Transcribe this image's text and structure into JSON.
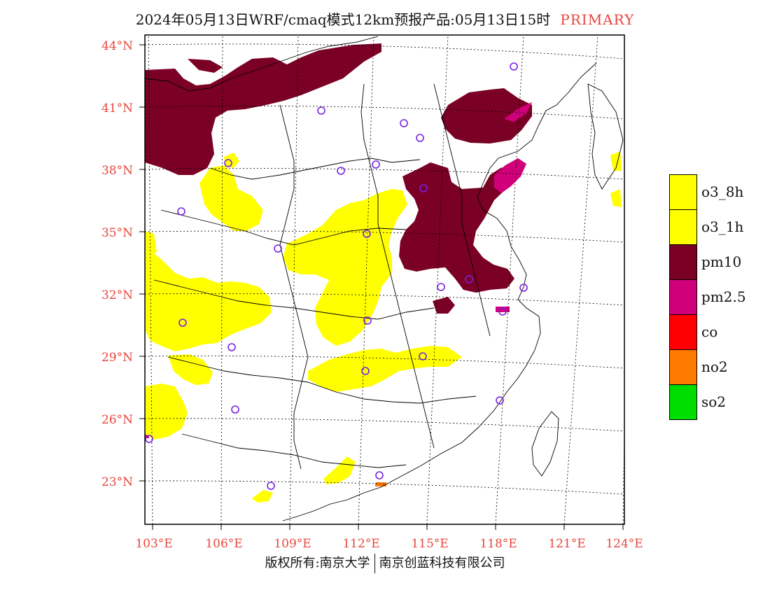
{
  "title": {
    "main": "2024年05月13日WRF/cmaq模式12km预报产品:05月13日15时",
    "tag": "PRIMARY"
  },
  "axes": {
    "lat_labels": [
      "44°N",
      "41°N",
      "38°N",
      "35°N",
      "32°N",
      "29°N",
      "26°N",
      "23°N"
    ],
    "lon_labels": [
      "103°E",
      "106°E",
      "109°E",
      "112°E",
      "115°E",
      "118°E",
      "121°E",
      "124°E"
    ]
  },
  "legend": [
    {
      "label": "o3_8h",
      "color": "#ffff00"
    },
    {
      "label": "o3_1h",
      "color": "#ffff00"
    },
    {
      "label": "pm10",
      "color": "#7a0026"
    },
    {
      "label": "pm2.5",
      "color": "#d0007a"
    },
    {
      "label": "co",
      "color": "#ff0000"
    },
    {
      "label": "no2",
      "color": "#ff7a00"
    },
    {
      "label": "so2",
      "color": "#00dd00"
    }
  ],
  "colors": {
    "label_red": "#e8453c",
    "station_marker": "#7a22e0",
    "o3": "#ffff00",
    "pm10": "#7a0026",
    "pm25": "#d0007a",
    "no2": "#ff7a00"
  },
  "footer": {
    "left": "版权所有:南京大学",
    "right": "南京创蓝科技有限公司"
  }
}
